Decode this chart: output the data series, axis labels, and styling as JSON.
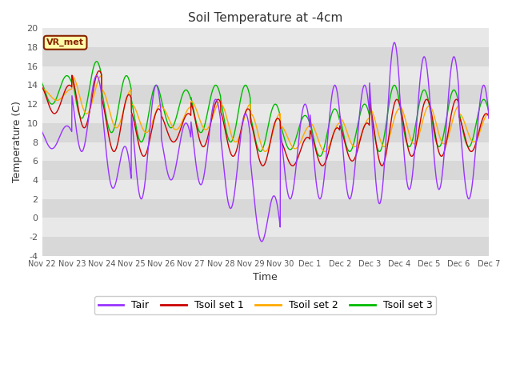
{
  "title": "Soil Temperature at -4cm",
  "xlabel": "Time",
  "ylabel": "Temperature (C)",
  "ylim": [
    -4,
    20
  ],
  "xlim": [
    0,
    360
  ],
  "fig_bg_color": "#ffffff",
  "plot_bg_color": "#d8d8d8",
  "band_colors": [
    "#d8d8d8",
    "#e8e8e8"
  ],
  "line_colors": {
    "Tair": "#9933ff",
    "Tsoil set 1": "#cc0000",
    "Tsoil set 2": "#ffaa00",
    "Tsoil set 3": "#00bb00"
  },
  "xtick_positions": [
    0,
    24,
    48,
    72,
    96,
    120,
    144,
    168,
    192,
    216,
    240,
    264,
    288,
    312,
    336,
    360
  ],
  "xtick_labels": [
    "Nov 22",
    "Nov 23",
    "Nov 24",
    "Nov 25",
    "Nov 26",
    "Nov 27",
    "Nov 28",
    "Nov 29",
    "Nov 30",
    "Dec 1",
    "Dec 2",
    "Dec 3",
    "Dec 4",
    "Dec 5",
    "Dec 6",
    "Dec 7"
  ],
  "ytick_positions": [
    -4,
    -2,
    0,
    2,
    4,
    6,
    8,
    10,
    12,
    14,
    16,
    18,
    20
  ],
  "annotation_text": "VR_met",
  "annotation_bg": "#ffffaa",
  "annotation_border": "#882200",
  "legend_ncol": 4
}
